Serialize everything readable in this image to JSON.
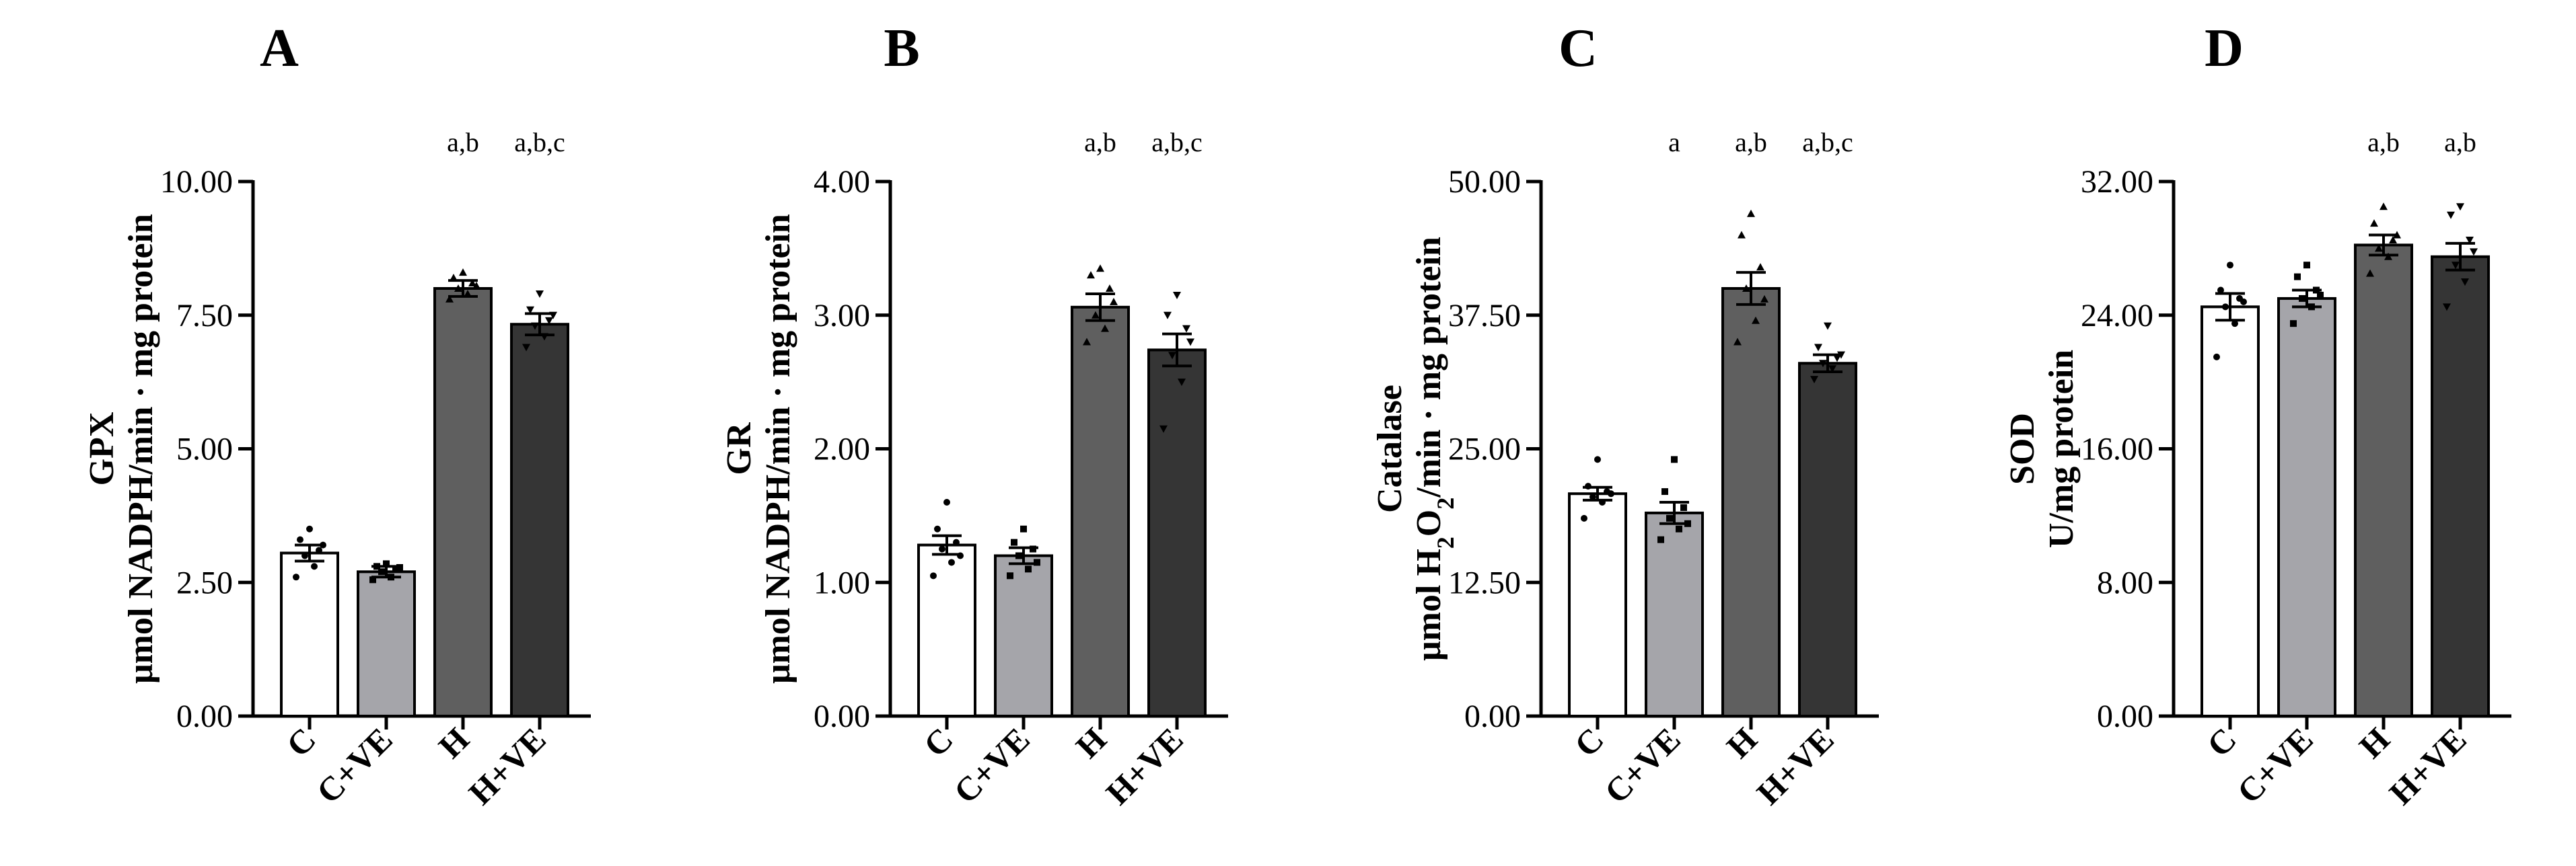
{
  "categories": [
    "C",
    "C+VE",
    "H",
    "H+VE"
  ],
  "colors": {
    "C": "#ffffff",
    "C+VE": "#a5a5aa",
    "H": "#5f5f5f",
    "H+VE": "#353535",
    "stroke": "#000000"
  },
  "chart_data": [
    {
      "type": "bar",
      "panel": "A",
      "title": "",
      "ylabel_line1": "GPX",
      "ylabel_line2": "μmol NADPH/min · mg protein",
      "ylim": [
        0,
        10
      ],
      "yticks": [
        "0.00",
        "2.50",
        "5.00",
        "7.50",
        "10.00"
      ],
      "tick_values": [
        0,
        2.5,
        5,
        7.5,
        10
      ],
      "values": [
        3.05,
        2.7,
        8.0,
        7.33
      ],
      "sem": [
        0.15,
        0.1,
        0.15,
        0.2
      ],
      "significance": [
        "",
        "",
        "a,b",
        "a,b,c"
      ],
      "points": [
        [
          3.5,
          3.3,
          3.1,
          3.0,
          2.8,
          2.6,
          3.2
        ],
        [
          2.85,
          2.8,
          2.75,
          2.7,
          2.6,
          2.55,
          2.78
        ],
        [
          8.3,
          8.2,
          8.1,
          8.0,
          7.9,
          7.8,
          8.05
        ],
        [
          7.9,
          7.6,
          7.4,
          7.3,
          7.1,
          6.9,
          7.5
        ]
      ]
    },
    {
      "type": "bar",
      "panel": "B",
      "title": "",
      "ylabel_line1": "GR",
      "ylabel_line2": "μmol NADPH/min · mg protein",
      "ylim": [
        0,
        4
      ],
      "yticks": [
        "0.00",
        "1.00",
        "2.00",
        "3.00",
        "4.00"
      ],
      "tick_values": [
        0,
        1,
        2,
        3,
        4
      ],
      "values": [
        1.28,
        1.2,
        3.06,
        2.74
      ],
      "sem": [
        0.07,
        0.06,
        0.1,
        0.12
      ],
      "significance": [
        "",
        "",
        "a,b",
        "a,b,c"
      ],
      "points": [
        [
          1.6,
          1.4,
          1.3,
          1.25,
          1.15,
          1.05,
          1.2
        ],
        [
          1.4,
          1.3,
          1.25,
          1.2,
          1.1,
          1.05,
          1.15
        ],
        [
          3.35,
          3.3,
          3.2,
          3.0,
          2.9,
          2.8,
          3.1
        ],
        [
          3.15,
          3.0,
          2.9,
          2.7,
          2.5,
          2.15,
          2.8
        ]
      ]
    },
    {
      "type": "bar",
      "panel": "C",
      "title": "",
      "ylabel_line1": "Catalase",
      "ylabel_line2": "μmol H2O2/min · mg protein",
      "ylim": [
        0,
        50
      ],
      "yticks": [
        "0.00",
        "12.50",
        "25.00",
        "37.50",
        "50.00"
      ],
      "tick_values": [
        0,
        12.5,
        25,
        37.5,
        50
      ],
      "values": [
        20.8,
        19.0,
        40.0,
        33.0
      ],
      "sem": [
        0.6,
        1.0,
        1.5,
        0.8
      ],
      "significance": [
        "",
        "a",
        "a,b",
        "a,b,c"
      ],
      "points": [
        [
          24.0,
          21.5,
          21.0,
          20.5,
          20.0,
          18.5,
          20.8
        ],
        [
          24.0,
          21.0,
          19.5,
          18.5,
          17.5,
          16.5,
          18.0
        ],
        [
          47.0,
          45.0,
          42.0,
          40.0,
          37.0,
          35.0,
          39.0
        ],
        [
          36.5,
          34.5,
          33.5,
          33.0,
          32.5,
          31.5,
          33.8
        ]
      ]
    },
    {
      "type": "bar",
      "panel": "D",
      "title": "",
      "ylabel_line1": "SOD",
      "ylabel_line2": "U/mg protein",
      "ylim": [
        0,
        32
      ],
      "yticks": [
        "0.00",
        "8.00",
        "16.00",
        "24.00",
        "32.00"
      ],
      "tick_values": [
        0,
        8,
        16,
        24,
        32
      ],
      "values": [
        24.5,
        25.0,
        28.2,
        27.5
      ],
      "sem": [
        0.8,
        0.5,
        0.6,
        0.8
      ],
      "significance": [
        "",
        "",
        "a,b",
        "a,b"
      ],
      "points": [
        [
          27.0,
          25.5,
          25.0,
          24.5,
          23.5,
          21.5,
          24.8
        ],
        [
          27.0,
          26.3,
          25.5,
          25.0,
          24.5,
          23.5,
          25.2
        ],
        [
          30.5,
          29.5,
          28.5,
          28.0,
          27.5,
          26.5,
          28.8
        ],
        [
          30.5,
          30.0,
          28.5,
          27.0,
          26.0,
          24.5,
          27.8
        ]
      ]
    }
  ]
}
